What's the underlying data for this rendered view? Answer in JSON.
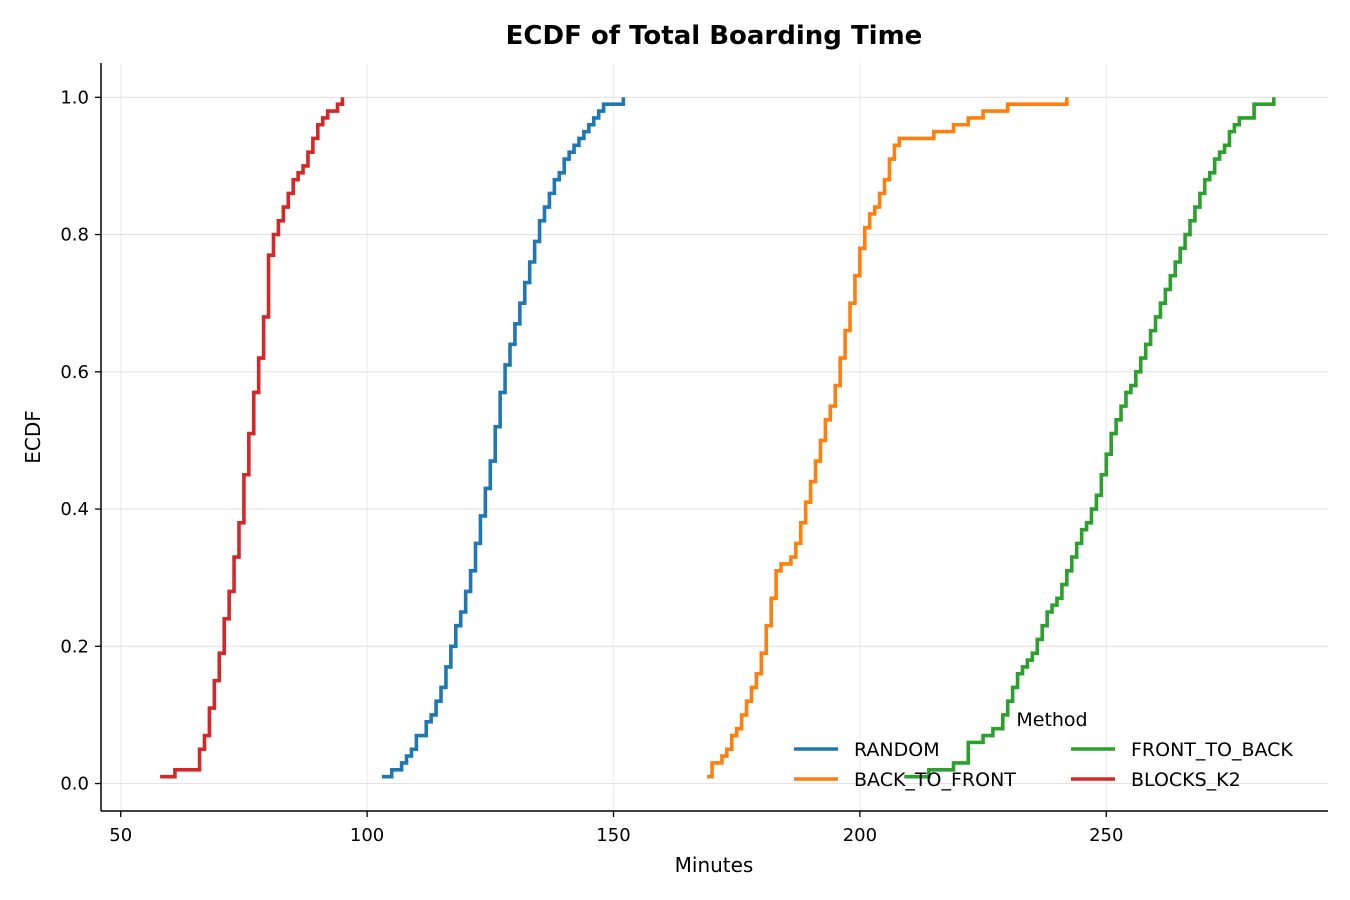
{
  "chart_data": {
    "type": "line",
    "step": true,
    "title": "ECDF of Total Boarding Time",
    "xlabel": "Minutes",
    "ylabel": "ECDF",
    "xlim": [
      46,
      295
    ],
    "ylim": [
      -0.04,
      1.05
    ],
    "xticks": [
      50,
      100,
      150,
      200,
      250
    ],
    "yticks": [
      0.0,
      0.2,
      0.4,
      0.6,
      0.8,
      1.0
    ],
    "ytick_labels": [
      "0.0",
      "0.2",
      "0.4",
      "0.6",
      "0.8",
      "1.0"
    ],
    "grid": true,
    "legend": {
      "title": "Method",
      "location": "lower right",
      "columns": 2
    },
    "series": [
      {
        "name": "RANDOM",
        "color": "#1f77b4",
        "x": [
          103,
          105,
          107,
          108,
          109,
          110,
          112,
          113,
          114,
          115,
          116,
          117,
          118,
          119,
          120,
          121,
          122,
          123,
          124,
          125,
          126,
          127,
          128,
          129,
          130,
          131,
          132,
          133,
          134,
          135,
          136,
          137,
          138,
          139,
          140,
          141,
          142,
          143,
          144,
          145,
          146,
          147,
          148,
          150,
          152
        ],
        "y": [
          0.01,
          0.02,
          0.03,
          0.04,
          0.05,
          0.07,
          0.09,
          0.1,
          0.12,
          0.14,
          0.17,
          0.2,
          0.23,
          0.25,
          0.28,
          0.31,
          0.35,
          0.39,
          0.43,
          0.47,
          0.52,
          0.57,
          0.61,
          0.64,
          0.67,
          0.7,
          0.73,
          0.76,
          0.79,
          0.82,
          0.84,
          0.86,
          0.88,
          0.89,
          0.91,
          0.92,
          0.93,
          0.94,
          0.95,
          0.96,
          0.97,
          0.98,
          0.99,
          0.99,
          1.0
        ]
      },
      {
        "name": "BACK_TO_FRONT",
        "color": "#ff7f0e",
        "x": [
          169,
          170,
          172,
          173,
          174,
          175,
          176,
          177,
          178,
          179,
          180,
          181,
          182,
          183,
          184,
          186,
          187,
          188,
          189,
          190,
          191,
          192,
          193,
          194,
          195,
          196,
          197,
          198,
          199,
          200,
          201,
          202,
          203,
          204,
          205,
          206,
          207,
          208,
          210,
          212,
          215,
          219,
          222,
          225,
          230,
          235,
          242
        ],
        "y": [
          0.01,
          0.03,
          0.04,
          0.05,
          0.07,
          0.08,
          0.1,
          0.12,
          0.14,
          0.16,
          0.19,
          0.23,
          0.27,
          0.31,
          0.32,
          0.33,
          0.35,
          0.38,
          0.41,
          0.44,
          0.47,
          0.5,
          0.53,
          0.55,
          0.58,
          0.62,
          0.66,
          0.7,
          0.74,
          0.78,
          0.81,
          0.83,
          0.84,
          0.86,
          0.88,
          0.91,
          0.93,
          0.94,
          0.94,
          0.94,
          0.95,
          0.96,
          0.97,
          0.98,
          0.99,
          0.99,
          1.0
        ]
      },
      {
        "name": "FRONT_TO_BACK",
        "color": "#2ca02c",
        "x": [
          209,
          214,
          219,
          222,
          225,
          227,
          229,
          230,
          231,
          232,
          233,
          234,
          235,
          236,
          237,
          238,
          239,
          240,
          241,
          242,
          243,
          244,
          245,
          246,
          247,
          248,
          249,
          250,
          251,
          252,
          253,
          254,
          255,
          256,
          257,
          258,
          259,
          260,
          261,
          262,
          263,
          264,
          265,
          266,
          267,
          268,
          269,
          270,
          271,
          272,
          273,
          274,
          275,
          276,
          277,
          280,
          284
        ],
        "y": [
          0.01,
          0.02,
          0.03,
          0.06,
          0.07,
          0.08,
          0.1,
          0.12,
          0.14,
          0.16,
          0.17,
          0.18,
          0.19,
          0.21,
          0.23,
          0.25,
          0.26,
          0.27,
          0.29,
          0.31,
          0.33,
          0.35,
          0.37,
          0.38,
          0.4,
          0.42,
          0.45,
          0.48,
          0.51,
          0.53,
          0.55,
          0.57,
          0.58,
          0.6,
          0.62,
          0.64,
          0.66,
          0.68,
          0.7,
          0.72,
          0.74,
          0.76,
          0.78,
          0.8,
          0.82,
          0.84,
          0.86,
          0.88,
          0.89,
          0.91,
          0.92,
          0.93,
          0.95,
          0.96,
          0.97,
          0.99,
          1.0
        ]
      },
      {
        "name": "BLOCKS_K2",
        "color": "#d62728",
        "x": [
          58,
          61,
          66,
          67,
          68,
          69,
          70,
          71,
          72,
          73,
          74,
          75,
          76,
          77,
          78,
          79,
          80,
          81,
          82,
          83,
          84,
          85,
          86,
          87,
          88,
          89,
          90,
          91,
          92,
          94,
          95
        ],
        "y": [
          0.01,
          0.02,
          0.05,
          0.07,
          0.11,
          0.15,
          0.19,
          0.24,
          0.28,
          0.33,
          0.38,
          0.45,
          0.51,
          0.57,
          0.62,
          0.68,
          0.77,
          0.8,
          0.82,
          0.84,
          0.86,
          0.88,
          0.89,
          0.9,
          0.92,
          0.94,
          0.96,
          0.97,
          0.98,
          0.99,
          1.0
        ]
      }
    ]
  }
}
